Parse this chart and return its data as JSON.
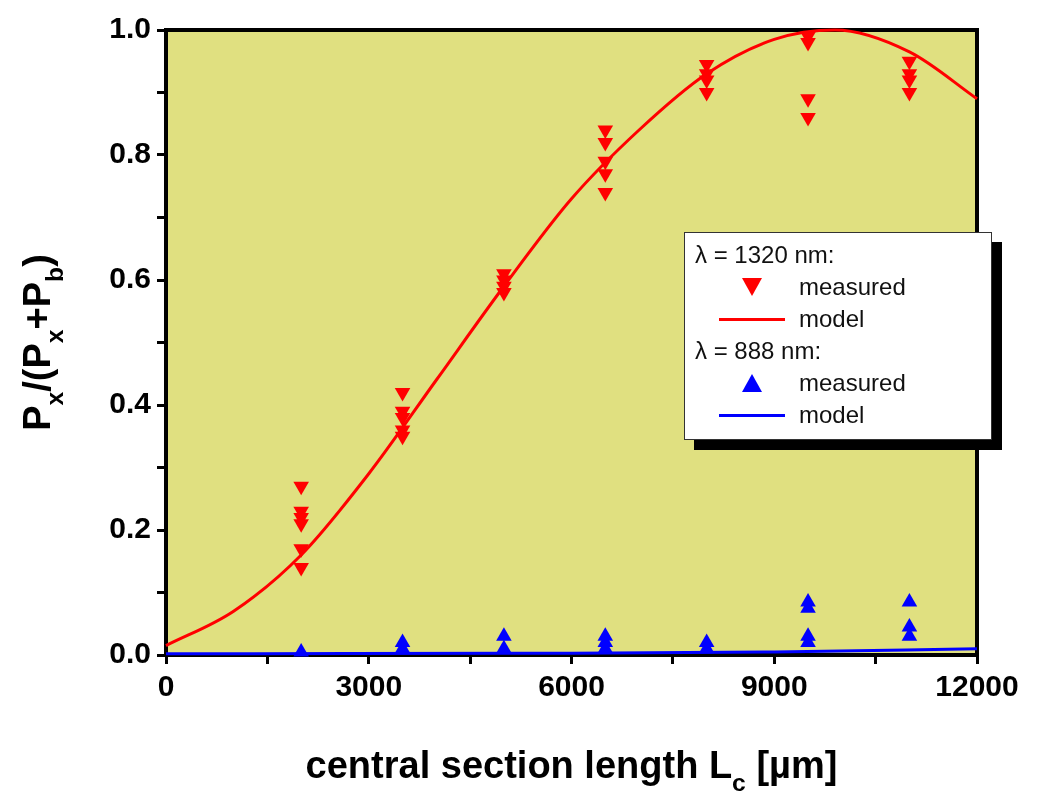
{
  "chart_data": {
    "type": "scatter",
    "xlabel": "central section length L$_{c}$ [µm]",
    "ylabel": "P$_{x}$/(P$_{x}$+P$_{b}$)",
    "annotations": [
      "λ = 1320 nm:",
      "λ = 888 nm:"
    ],
    "xlim": [
      0,
      12000
    ],
    "xticks": [
      0,
      {
        "value": 1500,
        "label": null
      },
      3000,
      {
        "value": 4500,
        "label": null
      },
      6000,
      {
        "value": 7500,
        "label": null
      },
      9000,
      {
        "value": 10500,
        "label": null
      },
      12000
    ],
    "ylim": [
      0,
      1
    ],
    "yticks": [
      {
        "value": 0,
        "label": "0.0"
      },
      {
        "value": 0.1,
        "label": null
      },
      0.2,
      {
        "value": 0.3,
        "label": null
      },
      0.4,
      {
        "value": 0.5,
        "label": null
      },
      0.6,
      {
        "value": 0.7,
        "label": null
      },
      0.8,
      {
        "value": 0.9,
        "label": null
      },
      {
        "value": 1,
        "label": "1.0"
      }
    ],
    "grid": false,
    "legend": "right",
    "series": [
      {
        "name": "measured",
        "marker": "triangle-down",
        "color": "#ff0000",
        "x": [
          2000,
          2000,
          2000,
          2000,
          2000,
          2000,
          3500,
          3500,
          3500,
          3500,
          3500,
          5000,
          5000,
          5000,
          5000,
          6500,
          6500,
          6500,
          6500,
          6500,
          8000,
          8000,
          8000,
          8000,
          9500,
          9500,
          9500,
          9500,
          11000,
          11000,
          11000,
          11000
        ],
        "values": [
          0.27,
          0.23,
          0.22,
          0.21,
          0.17,
          0.14,
          0.42,
          0.39,
          0.38,
          0.36,
          0.35,
          0.61,
          0.6,
          0.59,
          0.58,
          0.84,
          0.82,
          0.79,
          0.77,
          0.74,
          0.945,
          0.93,
          0.92,
          0.9,
          0.99,
          0.98,
          0.89,
          0.86,
          0.95,
          0.93,
          0.92,
          0.9
        ]
      },
      {
        "name": "model",
        "type": "line",
        "marker": "none",
        "color": "#ff0000",
        "x": [
          0,
          1000,
          2000,
          3000,
          4000,
          5000,
          6000,
          7000,
          8000,
          9000,
          9900,
          11000,
          12000
        ],
        "values": [
          0.015,
          0.07,
          0.16,
          0.29,
          0.44,
          0.59,
          0.73,
          0.84,
          0.93,
          0.985,
          1.0,
          0.965,
          0.89
        ]
      },
      {
        "name": "measured",
        "marker": "triangle",
        "color": "#0000ff",
        "x": [
          2000,
          3500,
          3500,
          5000,
          5000,
          6500,
          6500,
          6500,
          8000,
          8000,
          9500,
          9500,
          9500,
          9500,
          11000,
          11000,
          11000
        ],
        "values": [
          0.005,
          0.02,
          0.01,
          0.03,
          0.01,
          0.03,
          0.02,
          0.01,
          0.02,
          0.01,
          0.085,
          0.075,
          0.03,
          0.02,
          0.085,
          0.045,
          0.03
        ]
      },
      {
        "name": "model",
        "type": "line",
        "marker": "none",
        "color": "#0000ff",
        "x": [
          0,
          6000,
          9000,
          12000
        ],
        "values": [
          0.002,
          0.003,
          0.005,
          0.01
        ]
      }
    ]
  }
}
